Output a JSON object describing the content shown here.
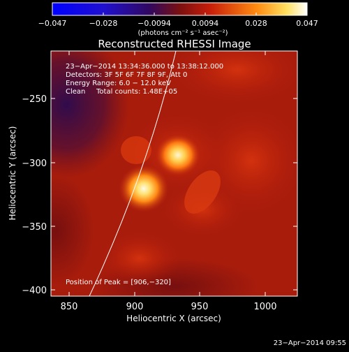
{
  "colorbar": {
    "tick_labels": [
      "−0.047",
      "−0.028",
      "−0.0094",
      "0.0094",
      "0.028",
      "0.047"
    ],
    "unit_label": "(photons cm⁻² s⁻¹ asec⁻²)"
  },
  "title": "Reconstructed RHESSI Image",
  "annotations": {
    "time_range": "23−Apr−2014 13:34:36.000 to 13:38:12.000",
    "detectors": "Detectors: 3F 5F 6F 7F 8F 9F, Att 0",
    "energy_range": "Energy Range: 6.0 − 12.0 keV",
    "clean_label": "Clean",
    "total_counts": "Total counts: 1.48E+05",
    "peak_position": "Position of Peak = [906,−320]"
  },
  "axes": {
    "xlabel": "Heliocentric X (arcsec)",
    "ylabel": "Heliocentric Y (arcsec)",
    "x_ticks": [
      "850",
      "900",
      "950",
      "1000"
    ],
    "y_ticks": [
      "−250",
      "−300",
      "−350",
      "−400"
    ]
  },
  "timestamp": "23−Apr−2014 09:55"
}
